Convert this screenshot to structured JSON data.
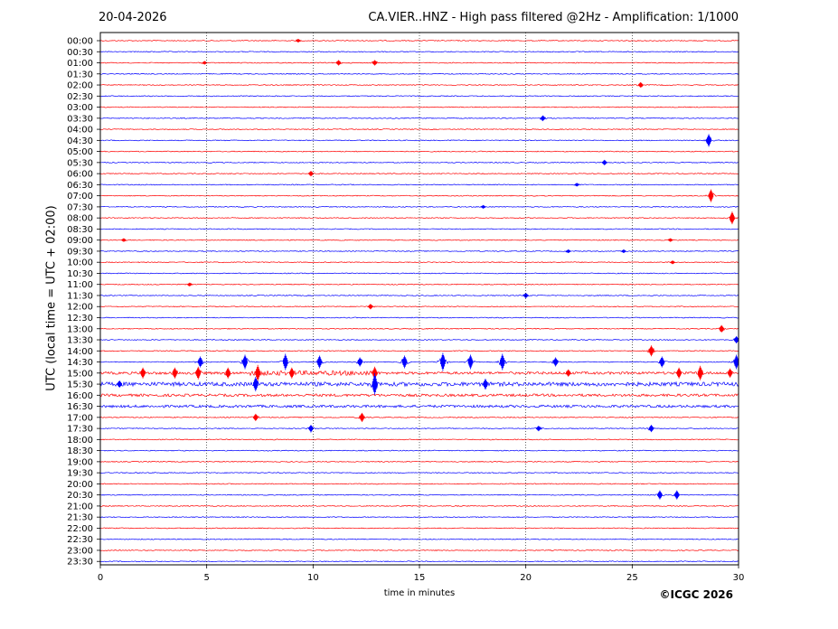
{
  "header": {
    "date": "20-04-2026",
    "title": "CA.VIER..HNZ - High pass filtered @2Hz - Amplification: 1/1000"
  },
  "footer": {
    "copyright": "©ICGC 2026"
  },
  "chart_data": {
    "type": "line",
    "title": "CA.VIER..HNZ - High pass filtered @2Hz - Amplification: 1/1000",
    "xlabel": "time in minutes",
    "ylabel": "UTC (local time = UTC + 02:00)",
    "xlim": [
      0,
      30
    ],
    "xticks": [
      0,
      5,
      10,
      15,
      20,
      25,
      30
    ],
    "grid": "vertical dotted at x ticks",
    "series_colors": [
      "#ff0000",
      "#0000ff"
    ],
    "rows": [
      {
        "label": "00:00",
        "color": "#ff0000",
        "events": [
          {
            "t": 9.3,
            "amp": 2
          }
        ]
      },
      {
        "label": "00:30",
        "color": "#0000ff",
        "events": []
      },
      {
        "label": "01:00",
        "color": "#ff0000",
        "events": [
          {
            "t": 4.9,
            "amp": 2
          },
          {
            "t": 11.2,
            "amp": 3
          },
          {
            "t": 12.9,
            "amp": 3
          }
        ]
      },
      {
        "label": "01:30",
        "color": "#0000ff",
        "events": []
      },
      {
        "label": "02:00",
        "color": "#ff0000",
        "events": [
          {
            "t": 25.4,
            "amp": 3
          }
        ]
      },
      {
        "label": "02:30",
        "color": "#0000ff",
        "events": []
      },
      {
        "label": "03:00",
        "color": "#ff0000",
        "events": []
      },
      {
        "label": "03:30",
        "color": "#0000ff",
        "events": [
          {
            "t": 20.8,
            "amp": 3
          }
        ]
      },
      {
        "label": "04:00",
        "color": "#ff0000",
        "events": []
      },
      {
        "label": "04:30",
        "color": "#0000ff",
        "events": [
          {
            "t": 28.6,
            "amp": 7
          }
        ]
      },
      {
        "label": "05:00",
        "color": "#ff0000",
        "events": []
      },
      {
        "label": "05:30",
        "color": "#0000ff",
        "events": [
          {
            "t": 23.7,
            "amp": 3
          }
        ]
      },
      {
        "label": "06:00",
        "color": "#ff0000",
        "events": [
          {
            "t": 9.9,
            "amp": 3
          }
        ]
      },
      {
        "label": "06:30",
        "color": "#0000ff",
        "events": [
          {
            "t": 22.4,
            "amp": 2
          }
        ]
      },
      {
        "label": "07:00",
        "color": "#ff0000",
        "events": [
          {
            "t": 28.7,
            "amp": 7
          }
        ]
      },
      {
        "label": "07:30",
        "color": "#0000ff",
        "events": [
          {
            "t": 18.0,
            "amp": 2
          }
        ]
      },
      {
        "label": "08:00",
        "color": "#ff0000",
        "events": [
          {
            "t": 29.7,
            "amp": 7
          }
        ]
      },
      {
        "label": "08:30",
        "color": "#0000ff",
        "events": []
      },
      {
        "label": "09:00",
        "color": "#ff0000",
        "events": [
          {
            "t": 1.1,
            "amp": 2
          },
          {
            "t": 26.8,
            "amp": 2
          }
        ]
      },
      {
        "label": "09:30",
        "color": "#0000ff",
        "events": [
          {
            "t": 22.0,
            "amp": 2
          },
          {
            "t": 24.6,
            "amp": 2
          }
        ]
      },
      {
        "label": "10:00",
        "color": "#ff0000",
        "events": [
          {
            "t": 26.9,
            "amp": 2
          }
        ]
      },
      {
        "label": "10:30",
        "color": "#0000ff",
        "events": []
      },
      {
        "label": "11:00",
        "color": "#ff0000",
        "events": [
          {
            "t": 4.2,
            "amp": 2
          }
        ]
      },
      {
        "label": "11:30",
        "color": "#0000ff",
        "events": [
          {
            "t": 20.0,
            "amp": 3
          }
        ]
      },
      {
        "label": "12:00",
        "color": "#ff0000",
        "events": [
          {
            "t": 12.7,
            "amp": 3
          }
        ]
      },
      {
        "label": "12:30",
        "color": "#0000ff",
        "events": []
      },
      {
        "label": "13:00",
        "color": "#ff0000",
        "events": [
          {
            "t": 29.2,
            "amp": 4
          }
        ]
      },
      {
        "label": "13:30",
        "color": "#0000ff",
        "events": [
          {
            "t": 29.9,
            "amp": 4
          }
        ]
      },
      {
        "label": "14:00",
        "color": "#ff0000",
        "events": [
          {
            "t": 25.9,
            "amp": 6
          }
        ]
      },
      {
        "label": "14:30",
        "color": "#0000ff",
        "events": [
          {
            "t": 4.7,
            "amp": 6
          },
          {
            "t": 6.8,
            "amp": 8
          },
          {
            "t": 8.7,
            "amp": 9
          },
          {
            "t": 10.3,
            "amp": 7
          },
          {
            "t": 12.2,
            "amp": 5
          },
          {
            "t": 14.3,
            "amp": 7
          },
          {
            "t": 16.1,
            "amp": 10
          },
          {
            "t": 17.4,
            "amp": 8
          },
          {
            "t": 18.9,
            "amp": 9
          },
          {
            "t": 21.4,
            "amp": 5
          },
          {
            "t": 26.4,
            "amp": 6
          },
          {
            "t": 29.9,
            "amp": 8
          }
        ]
      },
      {
        "label": "15:00",
        "color": "#ff0000",
        "events": [
          {
            "t": 2.0,
            "amp": 6
          },
          {
            "t": 3.5,
            "amp": 6
          },
          {
            "t": 4.6,
            "amp": 7
          },
          {
            "t": 6.0,
            "amp": 6
          },
          {
            "t": 7.4,
            "amp": 9
          },
          {
            "t": 9.0,
            "amp": 6
          },
          {
            "t": 12.9,
            "amp": 7
          },
          {
            "t": 22.0,
            "amp": 4
          },
          {
            "t": 27.2,
            "amp": 6
          },
          {
            "t": 28.2,
            "amp": 8
          },
          {
            "t": 29.6,
            "amp": 5
          }
        ]
      },
      {
        "label": "15:30",
        "color": "#0000ff",
        "events": [
          {
            "t": 0.9,
            "amp": 4
          },
          {
            "t": 7.3,
            "amp": 8
          },
          {
            "t": 12.9,
            "amp": 12
          },
          {
            "t": 18.1,
            "amp": 6
          }
        ]
      },
      {
        "label": "16:00",
        "color": "#ff0000",
        "events": []
      },
      {
        "label": "16:30",
        "color": "#0000ff",
        "events": []
      },
      {
        "label": "17:00",
        "color": "#ff0000",
        "events": [
          {
            "t": 7.3,
            "amp": 4
          },
          {
            "t": 12.3,
            "amp": 5
          }
        ]
      },
      {
        "label": "17:30",
        "color": "#0000ff",
        "events": [
          {
            "t": 9.9,
            "amp": 4
          },
          {
            "t": 20.6,
            "amp": 3
          },
          {
            "t": 25.9,
            "amp": 4
          }
        ]
      },
      {
        "label": "18:00",
        "color": "#ff0000",
        "events": []
      },
      {
        "label": "18:30",
        "color": "#0000ff",
        "events": []
      },
      {
        "label": "19:00",
        "color": "#ff0000",
        "events": []
      },
      {
        "label": "19:30",
        "color": "#0000ff",
        "events": []
      },
      {
        "label": "20:00",
        "color": "#ff0000",
        "events": []
      },
      {
        "label": "20:30",
        "color": "#0000ff",
        "events": [
          {
            "t": 26.3,
            "amp": 5
          },
          {
            "t": 27.1,
            "amp": 5
          }
        ]
      },
      {
        "label": "21:00",
        "color": "#ff0000",
        "events": []
      },
      {
        "label": "21:30",
        "color": "#0000ff",
        "events": []
      },
      {
        "label": "22:00",
        "color": "#ff0000",
        "events": []
      },
      {
        "label": "22:30",
        "color": "#0000ff",
        "events": []
      },
      {
        "label": "23:00",
        "color": "#ff0000",
        "events": []
      },
      {
        "label": "23:30",
        "color": "#0000ff",
        "events": []
      }
    ]
  }
}
